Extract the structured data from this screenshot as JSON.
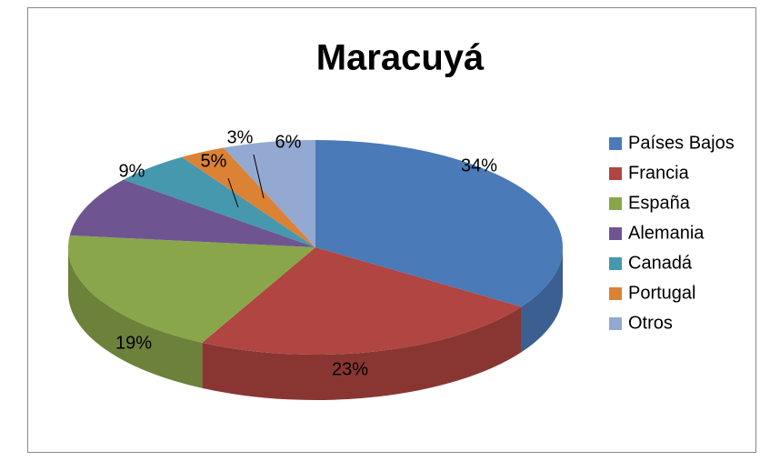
{
  "chart_data": {
    "type": "pie",
    "title": "Maracuyá",
    "categories": [
      "Países Bajos",
      "Francia",
      "España",
      "Alemania",
      "Canadá",
      "Portugal",
      "Otros"
    ],
    "values": [
      34,
      23,
      19,
      9,
      5,
      3,
      6
    ],
    "value_labels": [
      "34%",
      "23%",
      "19%",
      "9%",
      "5%",
      "3%",
      "6%"
    ],
    "colors": [
      "#4a7ab8",
      "#b04541",
      "#8aa64a",
      "#6e5592",
      "#4598ad",
      "#db8235",
      "#93a9d1"
    ],
    "legend": "right"
  }
}
